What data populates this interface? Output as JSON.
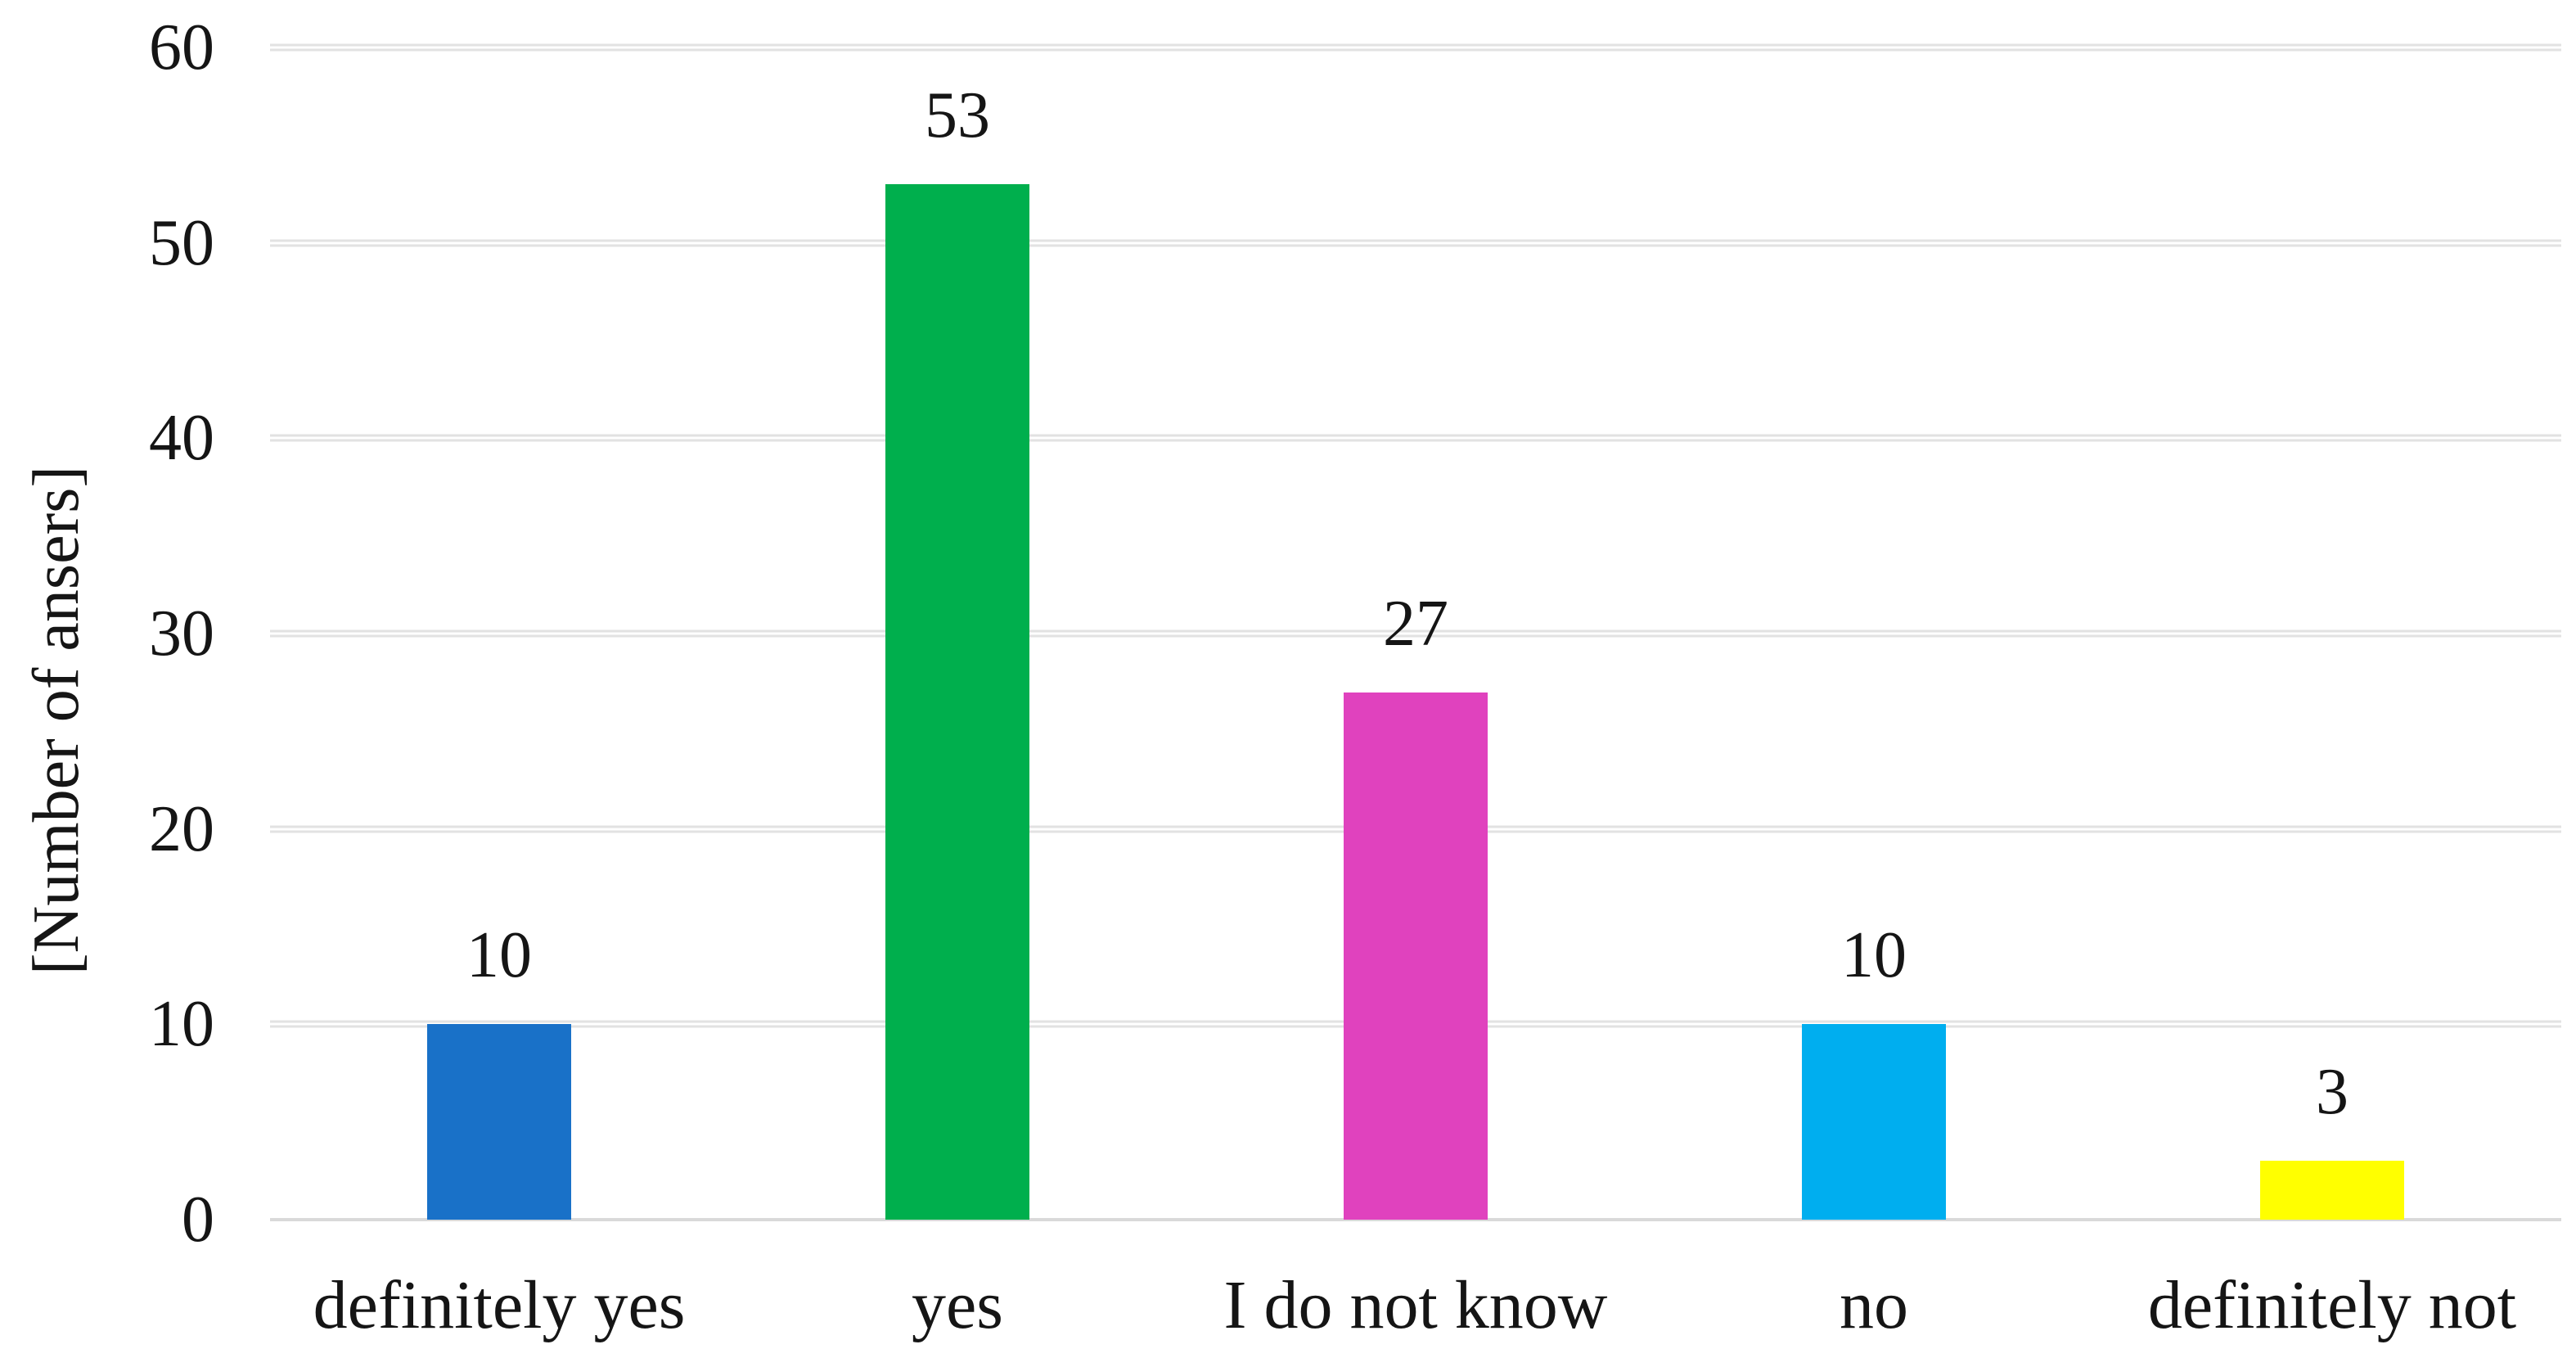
{
  "chart_data": {
    "type": "bar",
    "title": "",
    "xlabel": "",
    "ylabel": "[Number of ansers]",
    "categories": [
      "definitely yes",
      "yes",
      "I do not know",
      "no",
      "definitely not"
    ],
    "values": [
      10,
      53,
      27,
      10,
      3
    ],
    "data_labels": [
      10,
      53,
      27,
      10,
      3
    ],
    "bar_colors": [
      "#1971c8",
      "#00af4d",
      "#e042be",
      "#00aeef",
      "#ffff00"
    ],
    "ylim": [
      0,
      60
    ],
    "yticks": [
      0,
      10,
      20,
      30,
      40,
      50,
      60
    ],
    "grid": "horizontal-only",
    "gridline_color": "#e2e2e2",
    "baseline_color": "#d9d9d9",
    "legend": "none"
  }
}
